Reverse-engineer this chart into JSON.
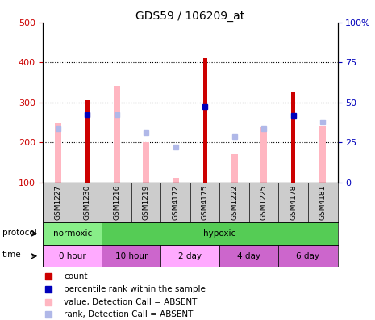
{
  "title": "GDS59 / 106209_at",
  "samples": [
    "GSM1227",
    "GSM1230",
    "GSM1216",
    "GSM1219",
    "GSM4172",
    "GSM4175",
    "GSM1222",
    "GSM1225",
    "GSM4178",
    "GSM4181"
  ],
  "count_values": [
    null,
    305,
    null,
    null,
    null,
    410,
    null,
    null,
    325,
    null
  ],
  "rank_values": [
    null,
    270,
    null,
    null,
    null,
    290,
    null,
    null,
    268,
    null
  ],
  "absent_value": [
    248,
    null,
    340,
    200,
    112,
    null,
    170,
    238,
    null,
    240
  ],
  "absent_rank": [
    235,
    null,
    270,
    225,
    188,
    null,
    215,
    235,
    null,
    250
  ],
  "ylim_left": [
    100,
    500
  ],
  "ylim_right": [
    0,
    100
  ],
  "count_color": "#cc0000",
  "rank_color": "#0000bb",
  "absent_value_color": "#ffb6c1",
  "absent_rank_color": "#b0b8e8",
  "bg_color": "#ffffff",
  "left_axis_color": "#cc0000",
  "right_axis_color": "#0000bb",
  "proto_groups": [
    {
      "label": "normoxic",
      "start": 0,
      "end": 2,
      "color": "#88ee88"
    },
    {
      "label": "hypoxic",
      "start": 2,
      "end": 10,
      "color": "#55cc55"
    }
  ],
  "time_groups": [
    {
      "label": "0 hour",
      "start": 0,
      "end": 2,
      "color": "#ffaaff"
    },
    {
      "label": "10 hour",
      "start": 2,
      "end": 4,
      "color": "#cc66cc"
    },
    {
      "label": "2 day",
      "start": 4,
      "end": 6,
      "color": "#ffaaff"
    },
    {
      "label": "4 day",
      "start": 6,
      "end": 8,
      "color": "#cc66cc"
    },
    {
      "label": "6 day",
      "start": 8,
      "end": 10,
      "color": "#cc66cc"
    }
  ],
  "legend_items": [
    {
      "color": "#cc0000",
      "label": "count"
    },
    {
      "color": "#0000bb",
      "label": "percentile rank within the sample"
    },
    {
      "color": "#ffb6c1",
      "label": "value, Detection Call = ABSENT"
    },
    {
      "color": "#b0b8e8",
      "label": "rank, Detection Call = ABSENT"
    }
  ]
}
